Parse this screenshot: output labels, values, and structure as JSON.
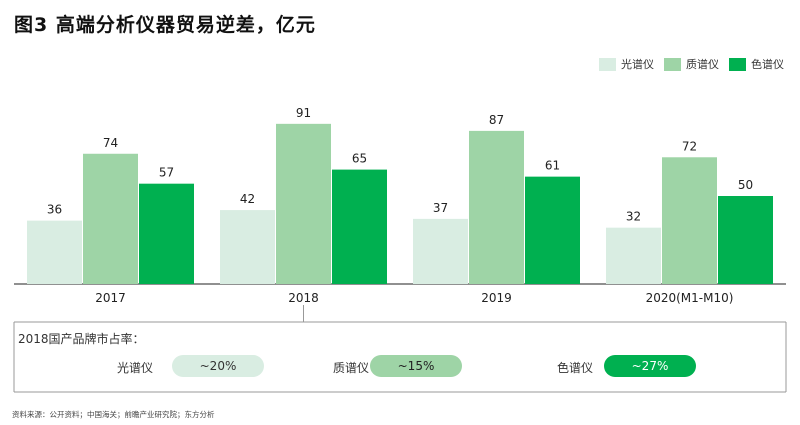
{
  "title": "图3 高端分析仪器贸易逆差，亿元",
  "chart_data": {
    "type": "bar",
    "categories": [
      "2017",
      "2018",
      "2019",
      "2020(M1-M10)"
    ],
    "series": [
      {
        "name": "光谱仪",
        "values": [
          36,
          42,
          37,
          32
        ]
      },
      {
        "name": "质谱仪",
        "values": [
          74,
          91,
          87,
          72
        ]
      },
      {
        "name": "色谱仪",
        "values": [
          57,
          65,
          61,
          50
        ]
      }
    ],
    "ylim": [
      0,
      100
    ],
    "grid": false,
    "legend": "top-right",
    "colors": [
      "#d9ede2",
      "#9ed4a6",
      "#00b050"
    ]
  },
  "share": {
    "label": "2018国产品牌市占率：",
    "items": [
      {
        "name": "光谱仪",
        "value": "~20%"
      },
      {
        "name": "质谱仪",
        "value": "~15%"
      },
      {
        "name": "色谱仪",
        "value": "~27%"
      }
    ]
  },
  "source": "资料来源：公开资料；中国海关；前瞻产业研究院；东方分析"
}
